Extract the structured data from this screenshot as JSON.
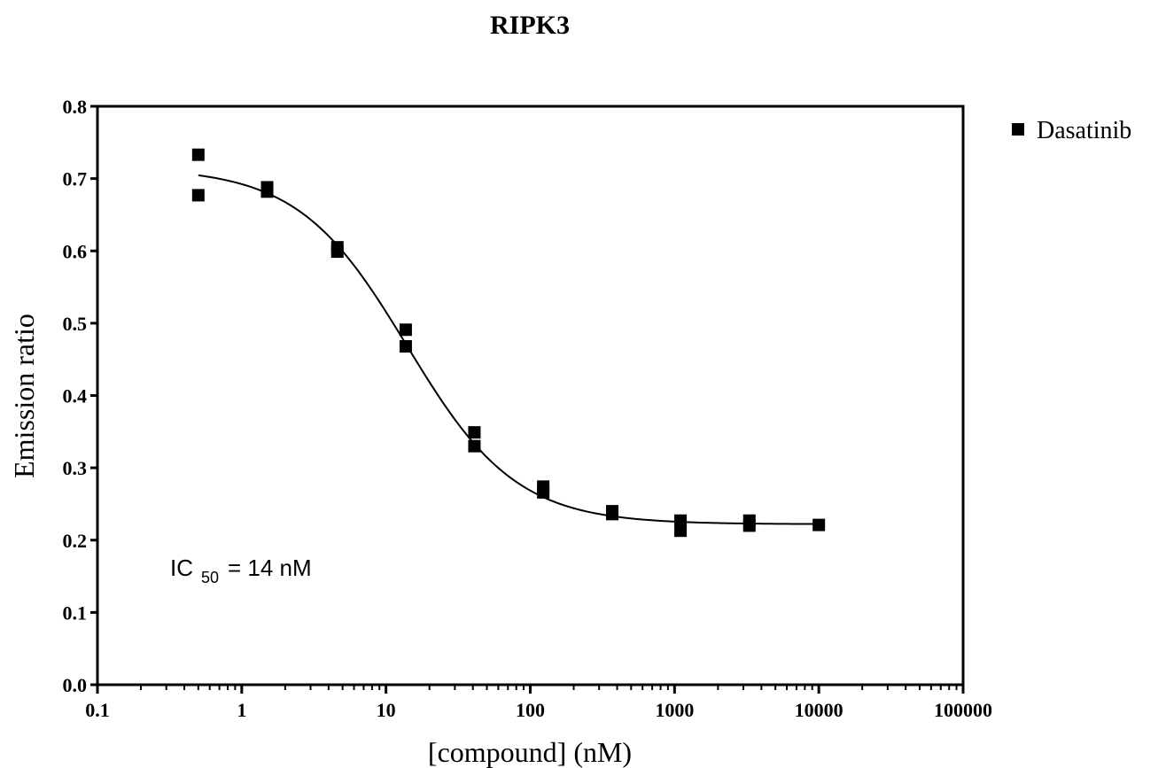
{
  "chart_data": {
    "type": "scatter",
    "title": "RIPK3",
    "xlabel": "[compound] (nM)",
    "ylabel": "Emission ratio",
    "xscale": "log",
    "xlim": [
      0.1,
      100000
    ],
    "ylim": [
      0.0,
      0.8
    ],
    "x_ticks": [
      "0.1",
      "1",
      "10",
      "100",
      "1000",
      "10000",
      "100000"
    ],
    "y_ticks": [
      "0.0",
      "0.1",
      "0.2",
      "0.3",
      "0.4",
      "0.5",
      "0.6",
      "0.7",
      "0.8"
    ],
    "legend_position": "top-right",
    "annotation": {
      "prefix": "IC",
      "subscript": "50",
      "suffix": "= 14 nM"
    },
    "series": [
      {
        "name": "Dasatinib",
        "marker": "square",
        "color": "#000000",
        "points": [
          [
            0.5,
            0.733
          ],
          [
            0.5,
            0.677
          ],
          [
            1.5,
            0.688
          ],
          [
            1.5,
            0.682
          ],
          [
            4.6,
            0.605
          ],
          [
            4.6,
            0.599
          ],
          [
            13.7,
            0.491
          ],
          [
            13.7,
            0.468
          ],
          [
            41,
            0.349
          ],
          [
            41,
            0.33
          ],
          [
            123,
            0.274
          ],
          [
            123,
            0.266
          ],
          [
            370,
            0.24
          ],
          [
            370,
            0.236
          ],
          [
            1100,
            0.227
          ],
          [
            1100,
            0.213
          ],
          [
            3300,
            0.227
          ],
          [
            3300,
            0.22
          ],
          [
            10000,
            0.221
          ]
        ],
        "fit": {
          "model": "4PL",
          "top": 0.715,
          "bottom": 0.222,
          "ic50": 14,
          "hill": 1.15,
          "x_range": [
            0.5,
            10000
          ]
        }
      }
    ]
  }
}
